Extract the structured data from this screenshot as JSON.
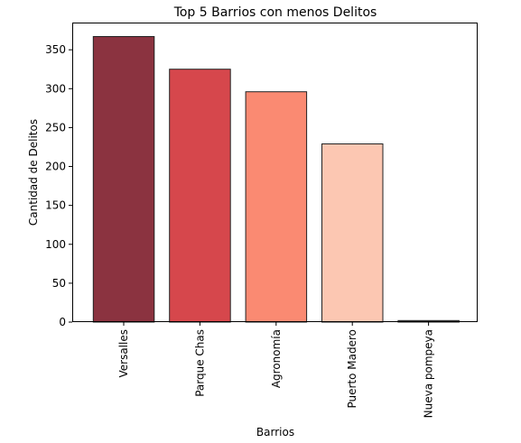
{
  "chart_data": {
    "type": "bar",
    "title": "Top 5 Barrios con menos Delitos",
    "xlabel": "Barrios",
    "ylabel": "Cantidad de Delitos",
    "categories": [
      "Versalles",
      "Parque Chas",
      "Agronomía",
      "Puerto Madero",
      "Nueva pompeya"
    ],
    "values": [
      367,
      325,
      296,
      229,
      2
    ],
    "colors": [
      "#8b3340",
      "#d6474c",
      "#fa8a72",
      "#fcc7b2",
      "#6b6b6b"
    ],
    "edge_color": "#222222",
    "ylim": [
      0,
      385
    ],
    "yticks": [
      0,
      50,
      100,
      150,
      200,
      250,
      300,
      350
    ],
    "grid": false,
    "legend": "none"
  }
}
